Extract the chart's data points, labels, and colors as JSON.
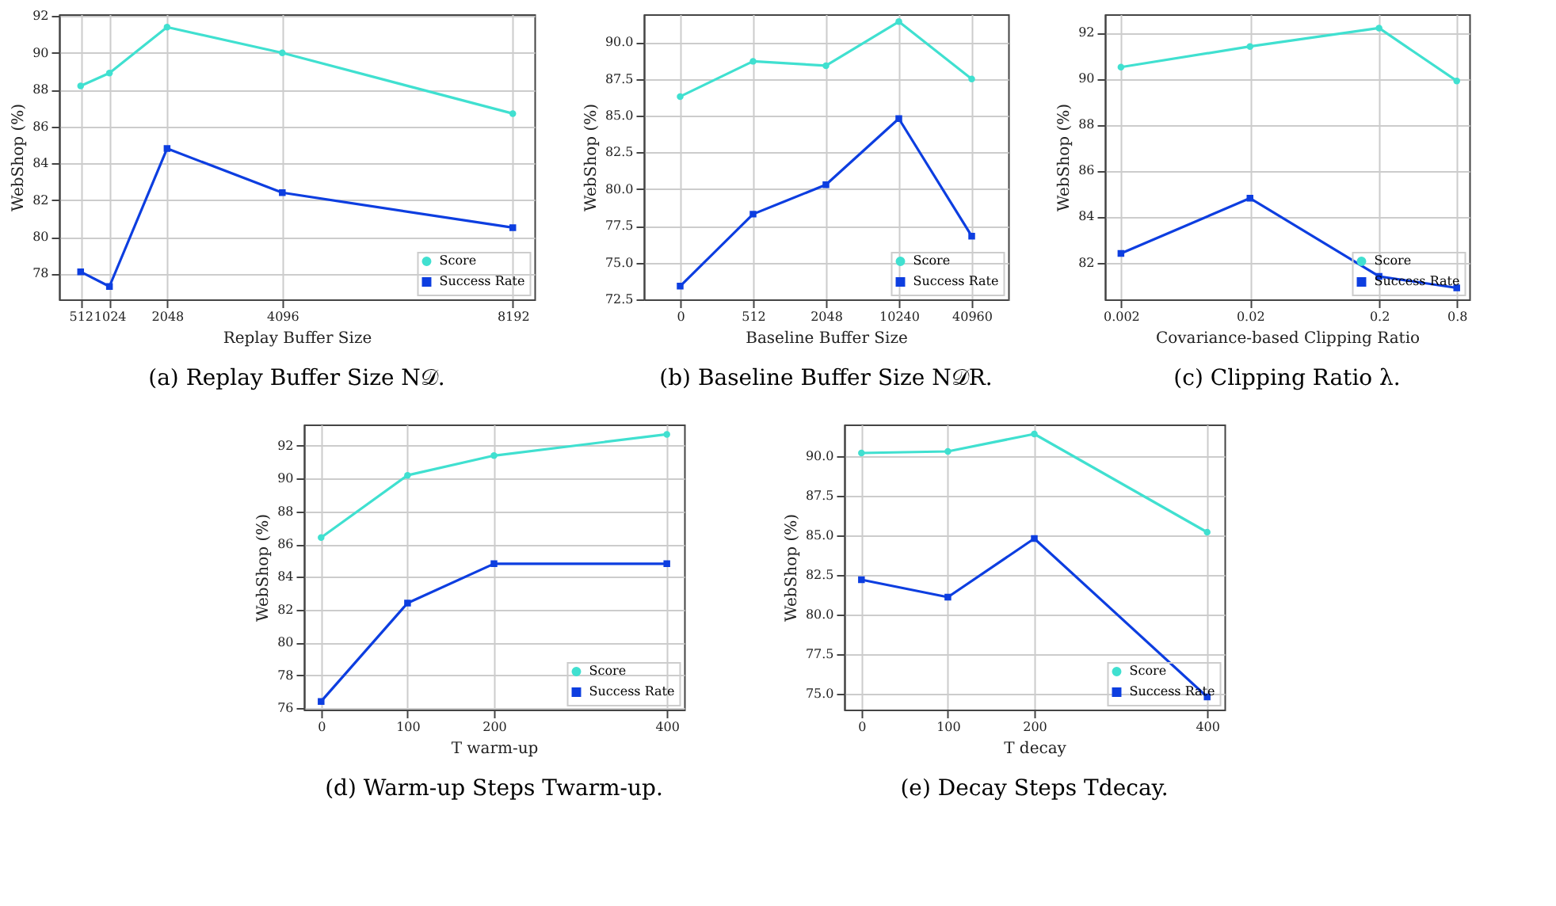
{
  "chart_data": [
    {
      "type": "line",
      "title": "(a) Replay Buffer Size N𝒟.",
      "xlabel": "Replay Buffer Size",
      "ylabel": "WebShop (%)",
      "x": [
        512,
        1024,
        2048,
        4096,
        8192
      ],
      "xlim": [
        128,
        8576
      ],
      "xticks": [
        512,
        1024,
        2048,
        4096,
        8192
      ],
      "ylim": [
        76.6,
        92.1
      ],
      "yticks": [
        78,
        80,
        82,
        84,
        86,
        88,
        90,
        92
      ],
      "grid": true,
      "legend": "bottom right",
      "series": [
        {
          "name": "Score",
          "color": "#40e0d0",
          "marker": "circle",
          "values": [
            88.2,
            88.9,
            91.4,
            90.0,
            86.7
          ]
        },
        {
          "name": "Success Rate",
          "color": "#0d3ee0",
          "marker": "square",
          "values": [
            78.1,
            77.3,
            84.8,
            82.4,
            80.5
          ]
        }
      ]
    },
    {
      "type": "line",
      "title": "(b) Baseline Buffer Size N𝒟R.",
      "xlabel": "Baseline Buffer Size",
      "ylabel": "WebShop (%)",
      "categories": [
        "0",
        "512",
        "2048",
        "10240",
        "40960"
      ],
      "ylim": [
        72.5,
        91.9
      ],
      "yticks": [
        {
          "value": 72.5,
          "label": "72.5"
        },
        {
          "value": 75,
          "label": "75.0"
        },
        {
          "value": 77.5,
          "label": "77.5"
        },
        {
          "value": 80,
          "label": "80.0"
        },
        {
          "value": 82.5,
          "label": "82.5"
        },
        {
          "value": 85,
          "label": "85.0"
        },
        {
          "value": 87.5,
          "label": "87.5"
        },
        {
          "value": 90,
          "label": "90.0"
        }
      ],
      "grid": true,
      "legend": "bottom right",
      "series": [
        {
          "name": "Score",
          "color": "#40e0d0",
          "marker": "circle",
          "values": [
            86.3,
            88.7,
            88.4,
            91.4,
            87.5
          ]
        },
        {
          "name": "Success Rate",
          "color": "#0d3ee0",
          "marker": "square",
          "values": [
            73.4,
            78.3,
            80.3,
            84.8,
            76.8
          ]
        }
      ]
    },
    {
      "type": "line",
      "title": "(c) Clipping Ratio λ.",
      "xlabel": "Covariance-based Clipping Ratio",
      "ylabel": "WebShop (%)",
      "log": "x",
      "x": [
        0.002,
        0.02,
        0.2,
        0.8
      ],
      "xlim": [
        0.0015,
        1.0
      ],
      "xticks": [
        0.002,
        0.02,
        0.2,
        0.8
      ],
      "ylim": [
        80.4,
        92.8
      ],
      "yticks": [
        82,
        84,
        86,
        88,
        90,
        92
      ],
      "grid": true,
      "legend": "bottom right",
      "series": [
        {
          "name": "Score",
          "color": "#40e0d0",
          "marker": "circle",
          "values": [
            90.5,
            91.4,
            92.2,
            89.9
          ]
        },
        {
          "name": "Success Rate",
          "color": "#0d3ee0",
          "marker": "square",
          "values": [
            82.4,
            84.8,
            81.4,
            80.9
          ]
        }
      ]
    },
    {
      "type": "line",
      "title": "(d) Warm-up Steps Twarm-up.",
      "xlabel": "T warm-up",
      "ylabel": "WebShop (%)",
      "x": [
        0,
        100,
        200,
        400
      ],
      "xlim": [
        -20,
        420
      ],
      "xticks": [
        0,
        100,
        200,
        400
      ],
      "ylim": [
        75.9,
        93.3
      ],
      "yticks": [
        76,
        78,
        80,
        82,
        84,
        86,
        88,
        90,
        92
      ],
      "grid": true,
      "legend": "bottom right",
      "series": [
        {
          "name": "Score",
          "color": "#40e0d0",
          "marker": "circle",
          "values": [
            86.4,
            90.2,
            91.4,
            92.7
          ]
        },
        {
          "name": "Success Rate",
          "color": "#0d3ee0",
          "marker": "square",
          "values": [
            76.4,
            82.4,
            84.8,
            84.8
          ]
        }
      ]
    },
    {
      "type": "line",
      "title": "(e) Decay Steps Tdecay.",
      "xlabel": "T decay",
      "ylabel": "WebShop (%)",
      "x": [
        0,
        100,
        200,
        400
      ],
      "xlim": [
        -20,
        420
      ],
      "xticks": [
        0,
        100,
        200,
        400
      ],
      "ylim": [
        74.0,
        92.0
      ],
      "yticks": [
        {
          "value": 75,
          "label": "75.0"
        },
        {
          "value": 77.5,
          "label": "77.5"
        },
        {
          "value": 80,
          "label": "80.0"
        },
        {
          "value": 82.5,
          "label": "82.5"
        },
        {
          "value": 85,
          "label": "85.0"
        },
        {
          "value": 87.5,
          "label": "87.5"
        },
        {
          "value": 90,
          "label": "90.0"
        }
      ],
      "grid": true,
      "legend": "bottom right",
      "series": [
        {
          "name": "Score",
          "color": "#40e0d0",
          "marker": "circle",
          "values": [
            90.2,
            90.3,
            91.4,
            85.2
          ]
        },
        {
          "name": "Success Rate",
          "color": "#0d3ee0",
          "marker": "square",
          "values": [
            82.2,
            81.1,
            84.8,
            74.8
          ]
        }
      ]
    }
  ]
}
